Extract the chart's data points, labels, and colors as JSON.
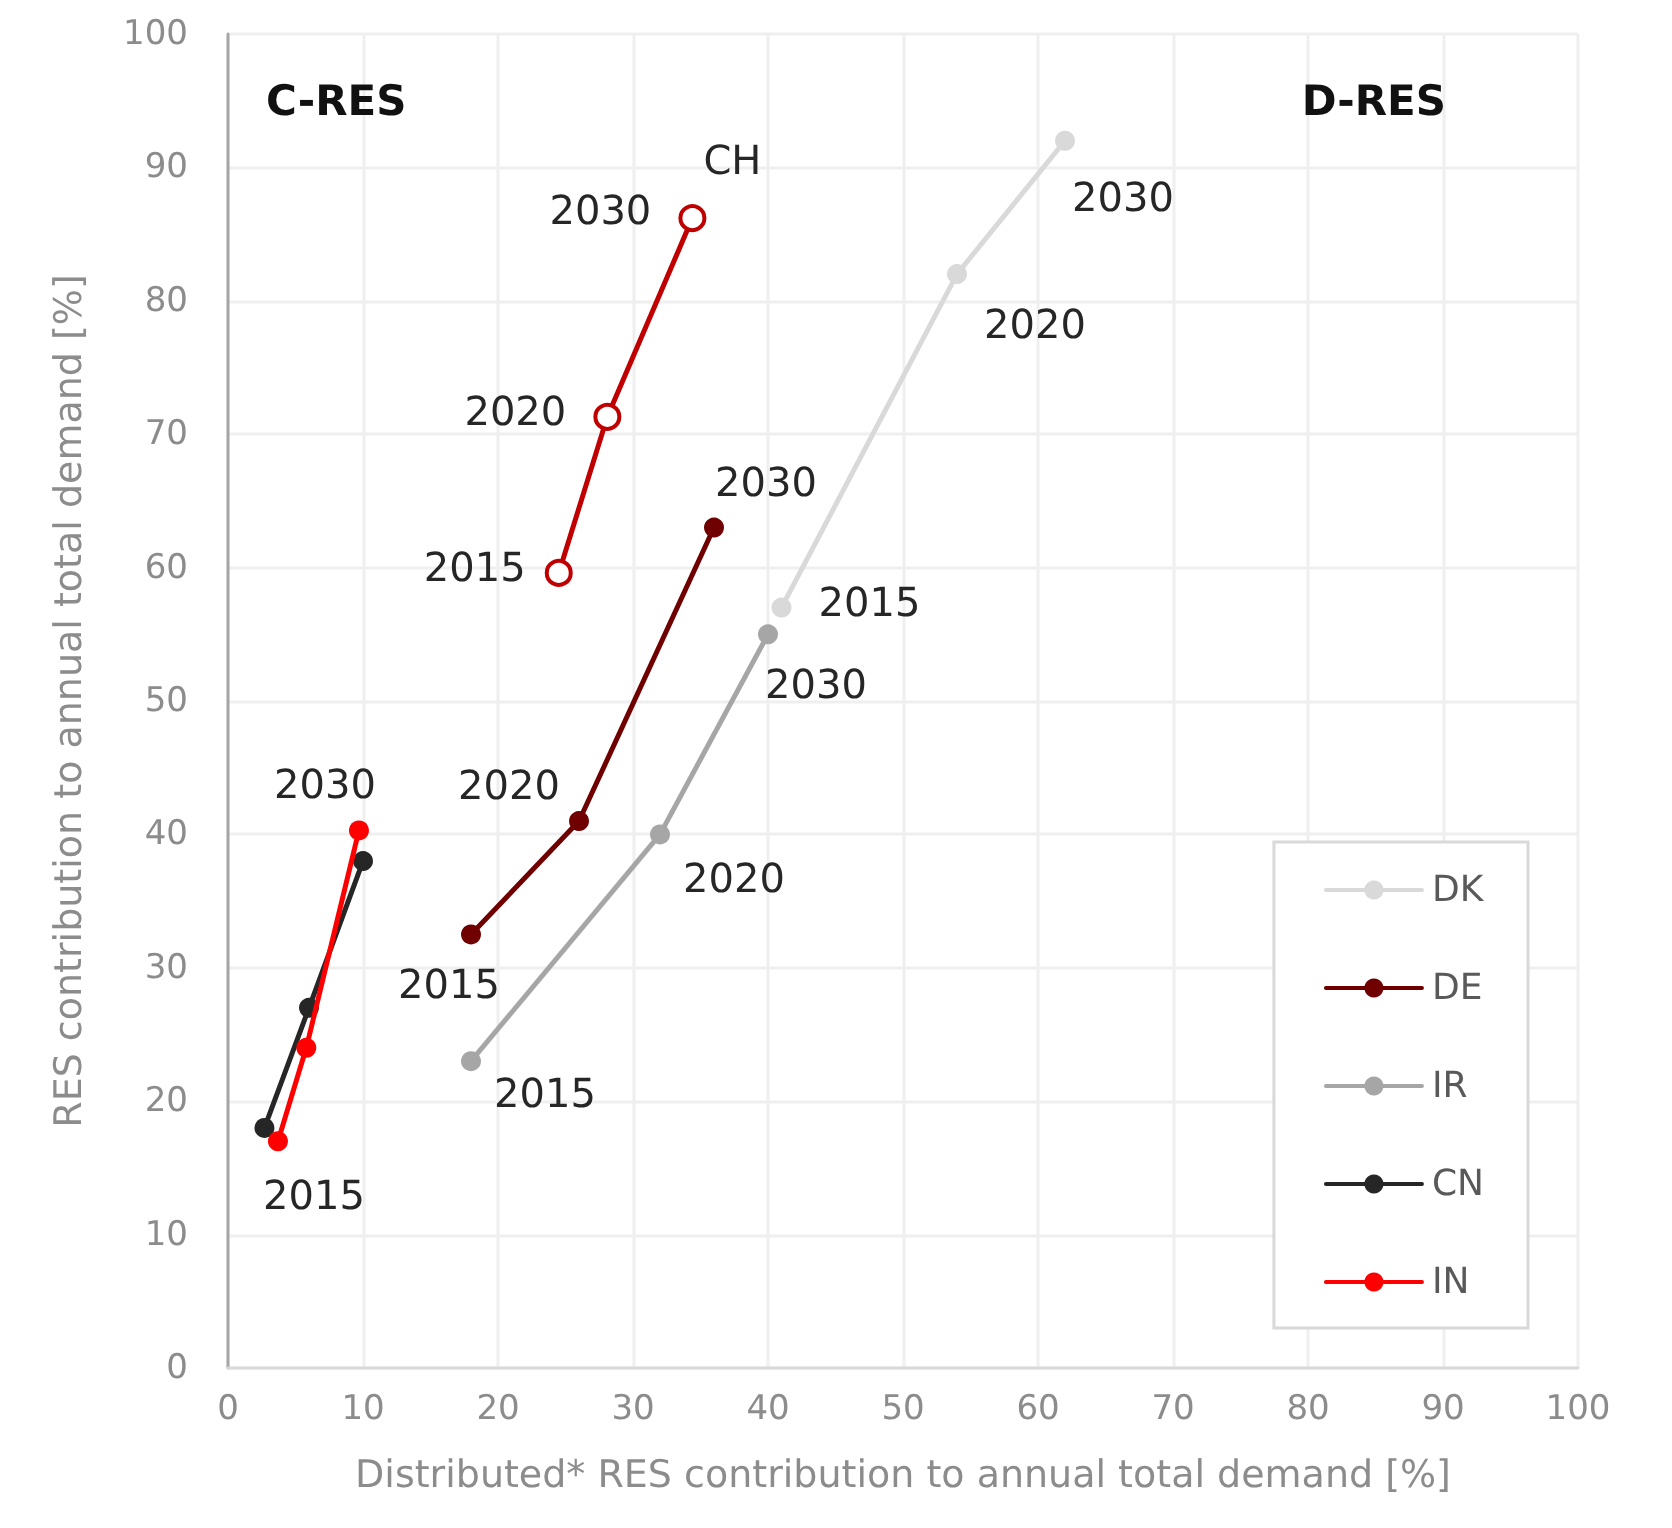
{
  "chart_data": {
    "type": "line",
    "xlabel": "Distributed* RES contribution to annual total demand [%]",
    "ylabel": "RES contribution to annual total demand [%]",
    "xlim": [
      0,
      100
    ],
    "ylim": [
      0,
      100
    ],
    "xticks": [
      0,
      10,
      20,
      30,
      40,
      50,
      60,
      70,
      80,
      90,
      100
    ],
    "yticks": [
      0,
      10,
      20,
      30,
      40,
      50,
      60,
      70,
      80,
      90,
      100
    ],
    "grid": true,
    "legend": "bottom right",
    "marker": "circle",
    "line_style": "solid",
    "series": [
      {
        "name": "DK",
        "color": "#d9d9d9",
        "x": [
          41,
          54,
          62
        ],
        "values": [
          57,
          82,
          92
        ]
      },
      {
        "name": "DE",
        "color": "#700000",
        "x": [
          18,
          26,
          36
        ],
        "values": [
          32.5,
          41,
          63
        ]
      },
      {
        "name": "IR",
        "color": "#a6a6a6",
        "x": [
          18,
          32,
          40
        ],
        "values": [
          23,
          40,
          55
        ]
      },
      {
        "name": "CN",
        "color": "#262626",
        "x": [
          2.7,
          6,
          10
        ],
        "values": [
          18,
          27,
          38
        ]
      },
      {
        "name": "IN",
        "color": "#ff0000",
        "x": [
          3.7,
          5.8,
          9.7
        ],
        "values": [
          17,
          24,
          40.3
        ]
      },
      {
        "color": "#c00000",
        "x": [
          24.5,
          28.1,
          34.4
        ],
        "values": [
          59.6,
          71.3,
          86.2
        ]
      }
    ],
    "annotations": [
      "C-RES",
      "D-RES",
      {
        "text": "CH",
        "x": 34.4,
        "y": 86.2
      },
      {
        "text": "2030",
        "x": 34.4,
        "y": 86.2
      },
      {
        "text": "2020",
        "x": 28.1,
        "y": 71.3
      },
      {
        "text": "2015",
        "x": 24.5,
        "y": 59.6
      },
      {
        "text": "2030",
        "x": 62,
        "y": 92
      },
      {
        "text": "2020",
        "x": 54,
        "y": 82
      },
      {
        "text": "2015",
        "x": 41,
        "y": 57
      },
      {
        "text": "2030",
        "x": 36,
        "y": 63
      },
      {
        "text": "2020",
        "x": 26,
        "y": 41
      },
      {
        "text": "2015",
        "x": 18,
        "y": 32.5
      },
      {
        "text": "2030",
        "x": 40,
        "y": 55
      },
      {
        "text": "2020",
        "x": 32,
        "y": 40
      },
      {
        "text": "2015",
        "x": 18,
        "y": 23
      },
      {
        "text": "2030",
        "x": 9.7,
        "y": 40.3
      },
      {
        "text": "2015",
        "x": 3.7,
        "y": 17
      }
    ]
  }
}
